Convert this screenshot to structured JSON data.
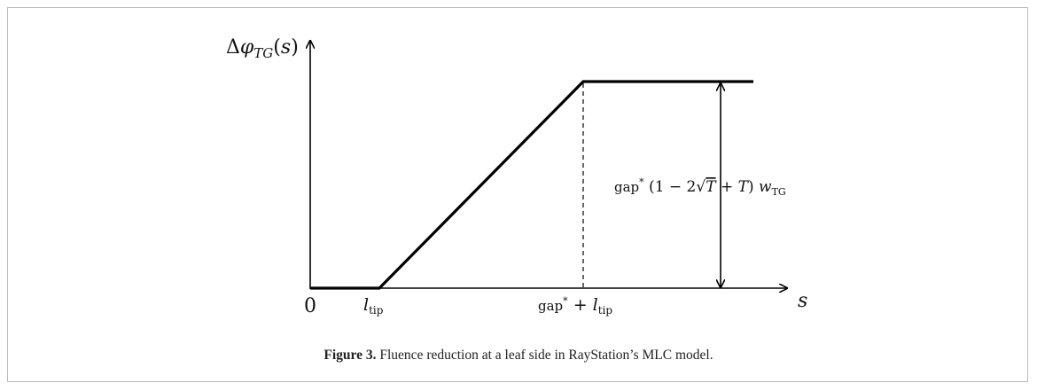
{
  "figure": {
    "y_label": {
      "parts": [
        "Δ",
        "φ",
        "TG",
        "(",
        "s",
        ")"
      ]
    },
    "x_label": "s",
    "origin": "0",
    "tick_tip": {
      "parts": [
        "l",
        "tip"
      ]
    },
    "tick_gap": {
      "parts": [
        "gap",
        "*",
        " + ",
        "l",
        "tip"
      ]
    },
    "height_label": {
      "parts": [
        "gap",
        "*",
        " (1 − 2",
        "√",
        "T",
        " + ",
        "T",
        ") ",
        "w",
        "TG"
      ]
    }
  },
  "caption": {
    "label": "Figure 3.",
    "text": " Fluence reduction at a leaf side in RayStation’s MLC model."
  }
}
